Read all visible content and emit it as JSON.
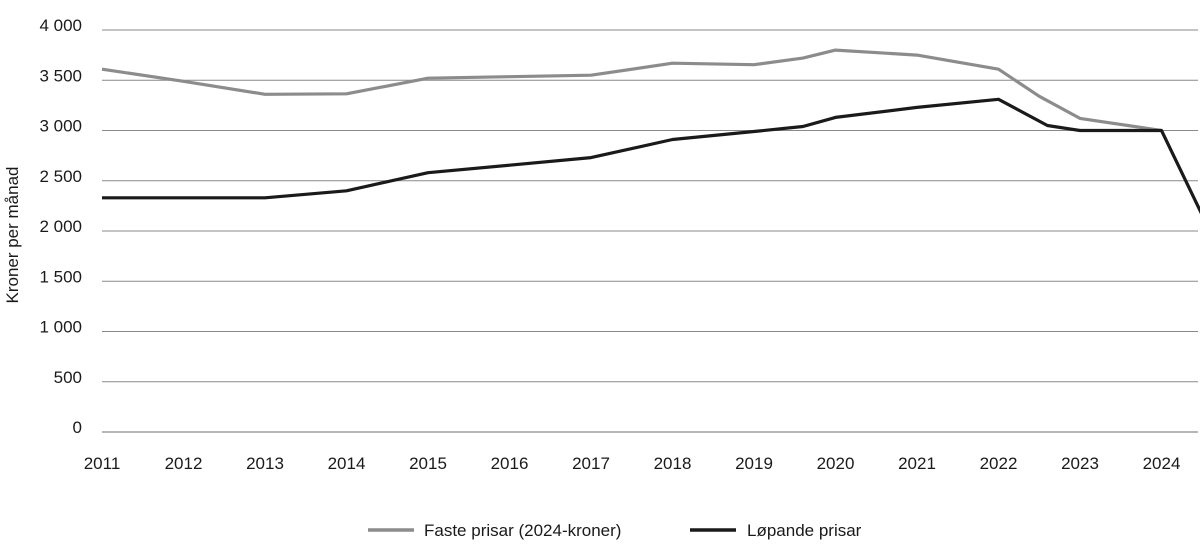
{
  "chart_data": {
    "type": "line",
    "title": "",
    "xlabel": "",
    "ylabel": "Kroner per månad",
    "ylim": [
      0,
      4000
    ],
    "yticks": [
      0,
      500,
      1000,
      1500,
      2000,
      2500,
      3000,
      3500,
      4000
    ],
    "ytick_labels": [
      "0",
      "500",
      "1 000",
      "1 500",
      "2 000",
      "2 500",
      "3 000",
      "3 500",
      "4 000"
    ],
    "xticks": [
      2011,
      2012,
      2013,
      2014,
      2015,
      2016,
      2017,
      2018,
      2019,
      2020,
      2021,
      2022,
      2023,
      2024
    ],
    "xtick_labels": [
      "2011",
      "2012",
      "2013",
      "2014",
      "2015",
      "2016",
      "2017",
      "2018",
      "2019",
      "2020",
      "2021",
      "2022",
      "2023",
      "2024"
    ],
    "xlim": [
      2011,
      2024.6
    ],
    "grid": "horizontal",
    "legend_position": "bottom-center",
    "series": [
      {
        "name": "Faste prisar (2024-kroner)",
        "color": "#8c8c8c",
        "points": [
          [
            2011,
            3610
          ],
          [
            2012,
            3490
          ],
          [
            2013,
            3360
          ],
          [
            2014,
            3365
          ],
          [
            2015,
            3520
          ],
          [
            2016,
            3535
          ],
          [
            2017,
            3550
          ],
          [
            2018,
            3670
          ],
          [
            2019,
            3655
          ],
          [
            2019.6,
            3720
          ],
          [
            2020,
            3800
          ],
          [
            2021,
            3750
          ],
          [
            2022,
            3610
          ],
          [
            2022.5,
            3340
          ],
          [
            2023,
            3120
          ],
          [
            2024,
            3000
          ]
        ]
      },
      {
        "name": "Løpande prisar",
        "color": "#1a1a1a",
        "points": [
          [
            2011,
            2330
          ],
          [
            2012,
            2330
          ],
          [
            2013,
            2330
          ],
          [
            2014,
            2400
          ],
          [
            2015,
            2580
          ],
          [
            2016,
            2655
          ],
          [
            2017,
            2730
          ],
          [
            2018,
            2910
          ],
          [
            2019,
            2990
          ],
          [
            2019.6,
            3040
          ],
          [
            2020,
            3130
          ],
          [
            2021,
            3230
          ],
          [
            2022,
            3310
          ],
          [
            2022.6,
            3050
          ],
          [
            2023,
            3000
          ],
          [
            2024,
            3000
          ],
          [
            2024.6,
            1990
          ]
        ]
      }
    ]
  }
}
